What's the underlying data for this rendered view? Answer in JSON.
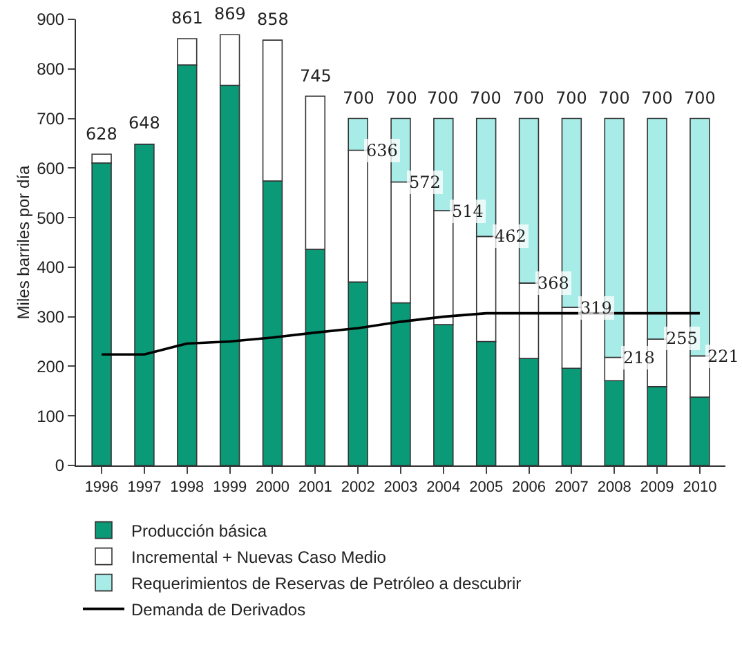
{
  "chart_data": {
    "type": "bar",
    "stacked": true,
    "ylabel": "Miles barriles por día",
    "categories": [
      "1996",
      "1997",
      "1998",
      "1999",
      "2000",
      "2001",
      "2002",
      "2003",
      "2004",
      "2005",
      "2006",
      "2007",
      "2008",
      "2009",
      "2010"
    ],
    "series": [
      {
        "name": "Producción básica",
        "color": "#0a9a78",
        "values": [
          610,
          648,
          808,
          767,
          574,
          436,
          370,
          328,
          284,
          250,
          216,
          196,
          171,
          159,
          138
        ]
      },
      {
        "name": "Incremental + Nuevas Caso Medio",
        "color": "#ffffff",
        "values": [
          18,
          null,
          53,
          102,
          284,
          309,
          266,
          244,
          230,
          212,
          152,
          123,
          47,
          96,
          83
        ]
      },
      {
        "name": "Requerimientos de Reservas de Petróleo a descubrir",
        "color": "#a8ece8",
        "values": [
          null,
          null,
          null,
          null,
          null,
          null,
          64,
          128,
          186,
          238,
          332,
          381,
          482,
          445,
          479
        ]
      },
      {
        "name": "Demanda de Derivados",
        "type": "line",
        "color": "#000000",
        "values": [
          224,
          224,
          246,
          250,
          258,
          268,
          277,
          290,
          300,
          307,
          307,
          307,
          307,
          307,
          307
        ]
      }
    ],
    "totals": [
      "628",
      "648",
      "861",
      "869",
      "858",
      "745",
      "700",
      "700",
      "700",
      "700",
      "700",
      "700",
      "700",
      "700",
      "700"
    ],
    "annotations": [
      {
        "text": "636",
        "x": "2002",
        "y": 636
      },
      {
        "text": "572",
        "x": "2003",
        "y": 572
      },
      {
        "text": "514",
        "x": "2004",
        "y": 514
      },
      {
        "text": "462",
        "x": "2005",
        "y": 462
      },
      {
        "text": "368",
        "x": "2006",
        "y": 368
      },
      {
        "text": "319",
        "x": "2007",
        "y": 319
      },
      {
        "text": "218",
        "x": "2008",
        "y": 218
      },
      {
        "text": "255",
        "x": "2009",
        "y": 255
      },
      {
        "text": "221",
        "x": "2010",
        "y": 221
      }
    ],
    "ylim": [
      0,
      900
    ],
    "yticks": [
      0,
      100,
      200,
      300,
      400,
      500,
      600,
      700,
      800,
      900
    ],
    "legend": "bottom"
  }
}
